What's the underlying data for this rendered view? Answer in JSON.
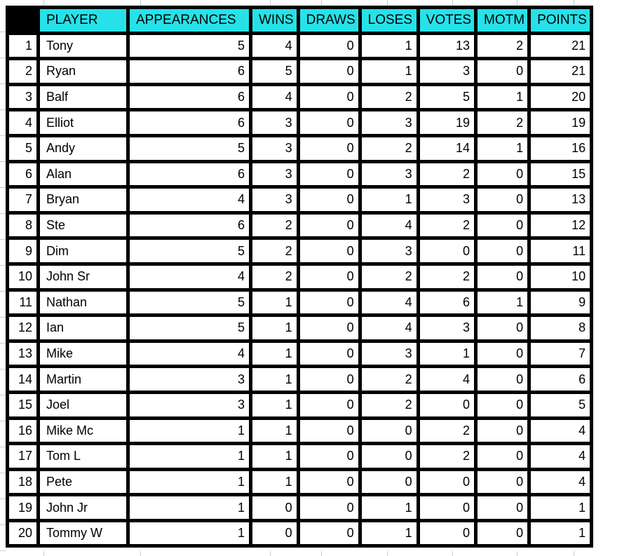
{
  "colors": {
    "header_bg": "#26e2e8",
    "header_corner_bg": "#000000",
    "table_border": "#000000",
    "gridline": "#cccccc"
  },
  "table": {
    "columns": [
      {
        "key": "rank",
        "label": ""
      },
      {
        "key": "player",
        "label": "PLAYER"
      },
      {
        "key": "appearances",
        "label": "APPEARANCES"
      },
      {
        "key": "wins",
        "label": "WINS"
      },
      {
        "key": "draws",
        "label": "DRAWS"
      },
      {
        "key": "loses",
        "label": "LOSES"
      },
      {
        "key": "votes",
        "label": "VOTES"
      },
      {
        "key": "motm",
        "label": "MOTM"
      },
      {
        "key": "points",
        "label": "POINTS"
      }
    ],
    "rows": [
      {
        "rank": 1,
        "player": "Tony",
        "appearances": 5,
        "wins": 4,
        "draws": 0,
        "loses": 1,
        "votes": 13,
        "motm": 2,
        "points": 21
      },
      {
        "rank": 2,
        "player": "Ryan",
        "appearances": 6,
        "wins": 5,
        "draws": 0,
        "loses": 1,
        "votes": 3,
        "motm": 0,
        "points": 21
      },
      {
        "rank": 3,
        "player": "Balf",
        "appearances": 6,
        "wins": 4,
        "draws": 0,
        "loses": 2,
        "votes": 5,
        "motm": 1,
        "points": 20
      },
      {
        "rank": 4,
        "player": "Elliot",
        "appearances": 6,
        "wins": 3,
        "draws": 0,
        "loses": 3,
        "votes": 19,
        "motm": 2,
        "points": 19
      },
      {
        "rank": 5,
        "player": "Andy",
        "appearances": 5,
        "wins": 3,
        "draws": 0,
        "loses": 2,
        "votes": 14,
        "motm": 1,
        "points": 16
      },
      {
        "rank": 6,
        "player": "Alan",
        "appearances": 6,
        "wins": 3,
        "draws": 0,
        "loses": 3,
        "votes": 2,
        "motm": 0,
        "points": 15
      },
      {
        "rank": 7,
        "player": "Bryan",
        "appearances": 4,
        "wins": 3,
        "draws": 0,
        "loses": 1,
        "votes": 3,
        "motm": 0,
        "points": 13
      },
      {
        "rank": 8,
        "player": "Ste",
        "appearances": 6,
        "wins": 2,
        "draws": 0,
        "loses": 4,
        "votes": 2,
        "motm": 0,
        "points": 12
      },
      {
        "rank": 9,
        "player": "Dim",
        "appearances": 5,
        "wins": 2,
        "draws": 0,
        "loses": 3,
        "votes": 0,
        "motm": 0,
        "points": 11
      },
      {
        "rank": 10,
        "player": "John Sr",
        "appearances": 4,
        "wins": 2,
        "draws": 0,
        "loses": 2,
        "votes": 2,
        "motm": 0,
        "points": 10
      },
      {
        "rank": 11,
        "player": "Nathan",
        "appearances": 5,
        "wins": 1,
        "draws": 0,
        "loses": 4,
        "votes": 6,
        "motm": 1,
        "points": 9
      },
      {
        "rank": 12,
        "player": "Ian",
        "appearances": 5,
        "wins": 1,
        "draws": 0,
        "loses": 4,
        "votes": 3,
        "motm": 0,
        "points": 8
      },
      {
        "rank": 13,
        "player": "Mike",
        "appearances": 4,
        "wins": 1,
        "draws": 0,
        "loses": 3,
        "votes": 1,
        "motm": 0,
        "points": 7
      },
      {
        "rank": 14,
        "player": "Martin",
        "appearances": 3,
        "wins": 1,
        "draws": 0,
        "loses": 2,
        "votes": 4,
        "motm": 0,
        "points": 6
      },
      {
        "rank": 15,
        "player": "Joel",
        "appearances": 3,
        "wins": 1,
        "draws": 0,
        "loses": 2,
        "votes": 0,
        "motm": 0,
        "points": 5
      },
      {
        "rank": 16,
        "player": "Mike Mc",
        "appearances": 1,
        "wins": 1,
        "draws": 0,
        "loses": 0,
        "votes": 2,
        "motm": 0,
        "points": 4
      },
      {
        "rank": 17,
        "player": "Tom L",
        "appearances": 1,
        "wins": 1,
        "draws": 0,
        "loses": 0,
        "votes": 2,
        "motm": 0,
        "points": 4
      },
      {
        "rank": 18,
        "player": "Pete",
        "appearances": 1,
        "wins": 1,
        "draws": 0,
        "loses": 0,
        "votes": 0,
        "motm": 0,
        "points": 4
      },
      {
        "rank": 19,
        "player": "John Jr",
        "appearances": 1,
        "wins": 0,
        "draws": 0,
        "loses": 1,
        "votes": 0,
        "motm": 0,
        "points": 1
      },
      {
        "rank": 20,
        "player": "Tommy W",
        "appearances": 1,
        "wins": 0,
        "draws": 0,
        "loses": 1,
        "votes": 0,
        "motm": 0,
        "points": 1
      }
    ]
  }
}
